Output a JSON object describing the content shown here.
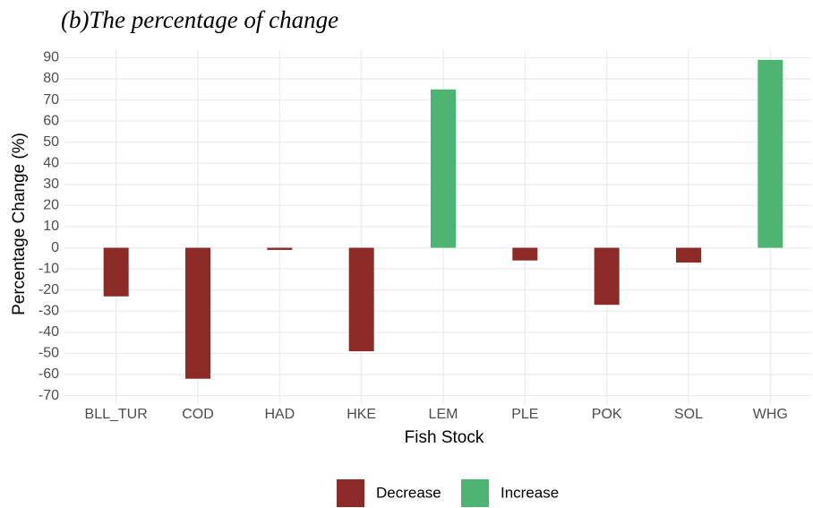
{
  "chart_data": {
    "type": "bar",
    "title": "(b)The percentage of change",
    "x_label": "Fish Stock",
    "y_label": "Percentage Change (%)",
    "categories": [
      "BLL_TUR",
      "COD",
      "HAD",
      "HKE",
      "LEM",
      "PLE",
      "POK",
      "SOL",
      "WHG"
    ],
    "series": [
      {
        "name": "Decrease",
        "color": "#8b2a26",
        "values": [
          -23,
          -62,
          -1,
          -49,
          null,
          -6,
          -27,
          -7,
          null
        ]
      },
      {
        "name": "Increase",
        "color": "#4cb574",
        "values": [
          null,
          null,
          null,
          null,
          75,
          null,
          null,
          null,
          89
        ]
      }
    ],
    "ylim": [
      -74,
      94
    ],
    "yticks": [
      -70,
      -60,
      -50,
      -40,
      -30,
      -20,
      -10,
      0,
      10,
      20,
      30,
      40,
      50,
      60,
      70,
      80,
      90
    ],
    "grid": true,
    "legend": "bottom"
  }
}
